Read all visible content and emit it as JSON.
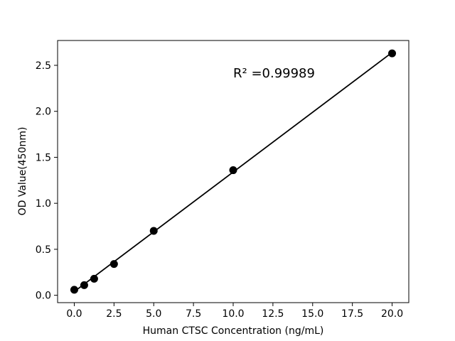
{
  "figure": {
    "background": "#ffffff"
  },
  "chart_data": {
    "type": "scatter",
    "title": "",
    "xlabel": "Human CTSC Concentration (ng/mL)",
    "ylabel": "OD Value(450nm)",
    "annotation": "R² =0.99989",
    "x": [
      0,
      0.625,
      1.25,
      2.5,
      5,
      10,
      20
    ],
    "y": [
      0.06,
      0.11,
      0.18,
      0.34,
      0.7,
      1.36,
      2.63
    ],
    "trendline": {
      "x": [
        0,
        20
      ],
      "y": [
        0.04,
        2.64
      ]
    },
    "xlim": [
      -1.05,
      21.05
    ],
    "ylim": [
      -0.08,
      2.77
    ],
    "xticks": {
      "values": [
        0,
        2.5,
        5,
        7.5,
        10,
        12.5,
        15,
        17.5,
        20
      ],
      "labels": [
        "0.0",
        "2.5",
        "5.0",
        "7.5",
        "10.0",
        "12.5",
        "15.0",
        "17.5",
        "20.0"
      ]
    },
    "yticks": {
      "values": [
        0,
        0.5,
        1,
        1.5,
        2,
        2.5
      ],
      "labels": [
        "0.0",
        "0.5",
        "1.0",
        "1.5",
        "2.0",
        "2.5"
      ]
    },
    "grid": false,
    "legend": null,
    "marker_color": "#000000",
    "line_color": "#000000",
    "axis_color": "#000000"
  }
}
